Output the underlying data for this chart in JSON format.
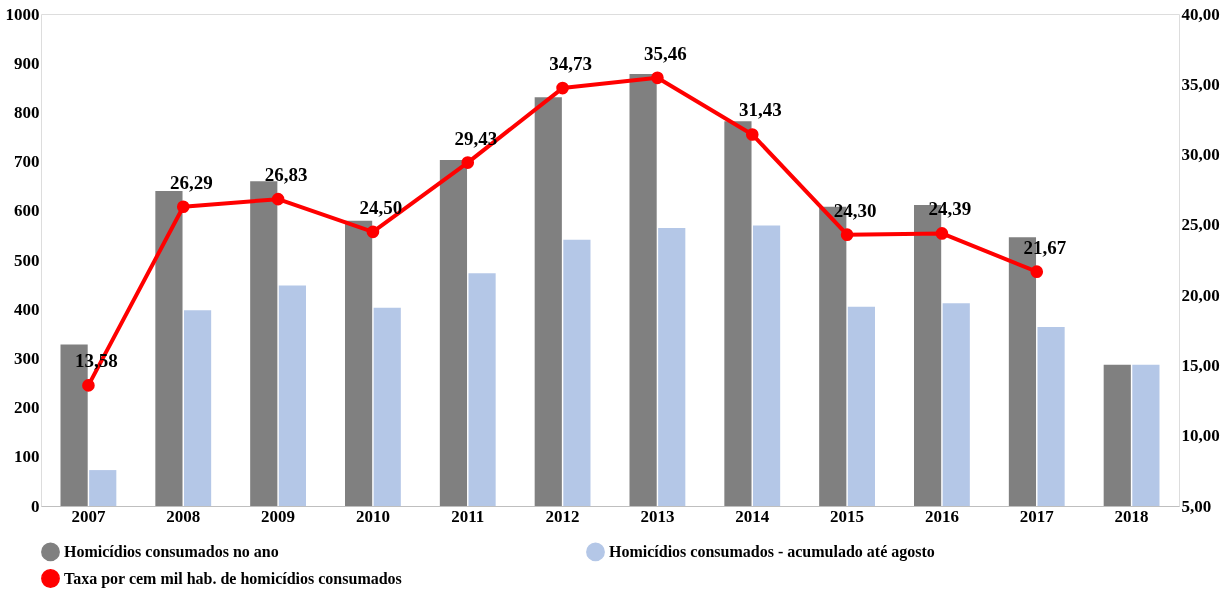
{
  "chart_data": {
    "type": "bar",
    "categories": [
      "2007",
      "2008",
      "2009",
      "2010",
      "2011",
      "2012",
      "2013",
      "2014",
      "2015",
      "2016",
      "2017",
      "2018"
    ],
    "series": [
      {
        "name": "Homicídios consumados no ano",
        "color": "#808080",
        "values": [
          328,
          640,
          660,
          580,
          703,
          831,
          878,
          782,
          608,
          612,
          546,
          287
        ]
      },
      {
        "name": "Homicídios consumados - acumulado até agosto",
        "color": "#b4c7e7",
        "values": [
          73,
          398,
          448,
          403,
          473,
          541,
          565,
          570,
          405,
          412,
          364,
          287
        ]
      },
      {
        "name": "Taxa por cem mil hab. de homicídios consumados",
        "type": "line",
        "axis": "y2",
        "color": "#ff0000",
        "marker": "circle",
        "values": [
          13.58,
          26.29,
          26.83,
          24.5,
          29.43,
          34.73,
          35.46,
          31.43,
          24.3,
          24.39,
          21.67,
          null
        ],
        "value_labels": [
          "13,58",
          "26,29",
          "26,83",
          "24,50",
          "29,43",
          "34,73",
          "35,46",
          "31,43",
          "24,30",
          "24,39",
          "21,67",
          null
        ]
      }
    ],
    "ylim": [
      0,
      1000
    ],
    "yticks": [
      0,
      100,
      200,
      300,
      400,
      500,
      600,
      700,
      800,
      900,
      1000
    ],
    "y2lim": [
      5,
      40
    ],
    "y2ticks": [
      {
        "value": 5,
        "label": "5,00"
      },
      {
        "value": 10,
        "label": "10,00"
      },
      {
        "value": 15,
        "label": "15,00"
      },
      {
        "value": 20,
        "label": "20,00"
      },
      {
        "value": 25,
        "label": "25,00"
      },
      {
        "value": 30,
        "label": "30,00"
      },
      {
        "value": 35,
        "label": "35,00"
      },
      {
        "value": 40,
        "label": "40,00"
      }
    ],
    "grid": false,
    "legend": "bottom"
  }
}
